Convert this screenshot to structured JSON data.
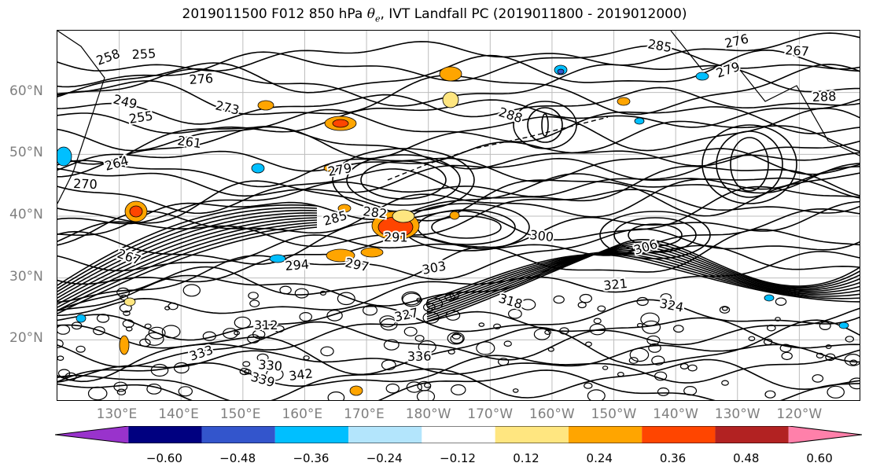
{
  "title": {
    "prefix": "2019011500 F012 850 hPa ",
    "symbol": "θ",
    "subscript": "e",
    "suffix": ", IVT Landfall PC (2019011800 - 2019012000)"
  },
  "map": {
    "projection": "PlateCarree",
    "lon_range": [
      120,
      250
    ],
    "lat_range": [
      10,
      70
    ],
    "gridlines": true,
    "lat_labels": [
      "60°N",
      "50°N",
      "40°N",
      "30°N",
      "20°N"
    ],
    "lon_labels": [
      "130°E",
      "140°E",
      "150°E",
      "160°E",
      "170°E",
      "180°W",
      "170°W",
      "160°W",
      "150°W",
      "140°W",
      "130°W",
      "120°W"
    ]
  },
  "contours": {
    "variable": "theta_e",
    "color": "#000000",
    "labels": [
      "258",
      "255",
      "249",
      "255",
      "261",
      "264",
      "270",
      "267",
      "276",
      "273",
      "279",
      "282",
      "285",
      "291",
      "288",
      "294",
      "297",
      "303",
      "300",
      "306",
      "312",
      "318",
      "321",
      "324",
      "327",
      "330",
      "333",
      "336",
      "339",
      "342",
      "285",
      "276",
      "267",
      "279",
      "288"
    ]
  },
  "shading": {
    "variable": "IVT Landfall PC",
    "levels": [
      "−0.60",
      "−0.48",
      "−0.36",
      "−0.24",
      "−0.12",
      "0.12",
      "0.24",
      "0.36",
      "0.48",
      "0.60"
    ],
    "colors": [
      "#9933cc",
      "#000080",
      "#3355cc",
      "#00bfff",
      "#b3e5fc",
      "#ffffff",
      "#ffe680",
      "#ffa500",
      "#ff4500",
      "#b22222",
      "#ff80aa"
    ],
    "extend": "both"
  }
}
